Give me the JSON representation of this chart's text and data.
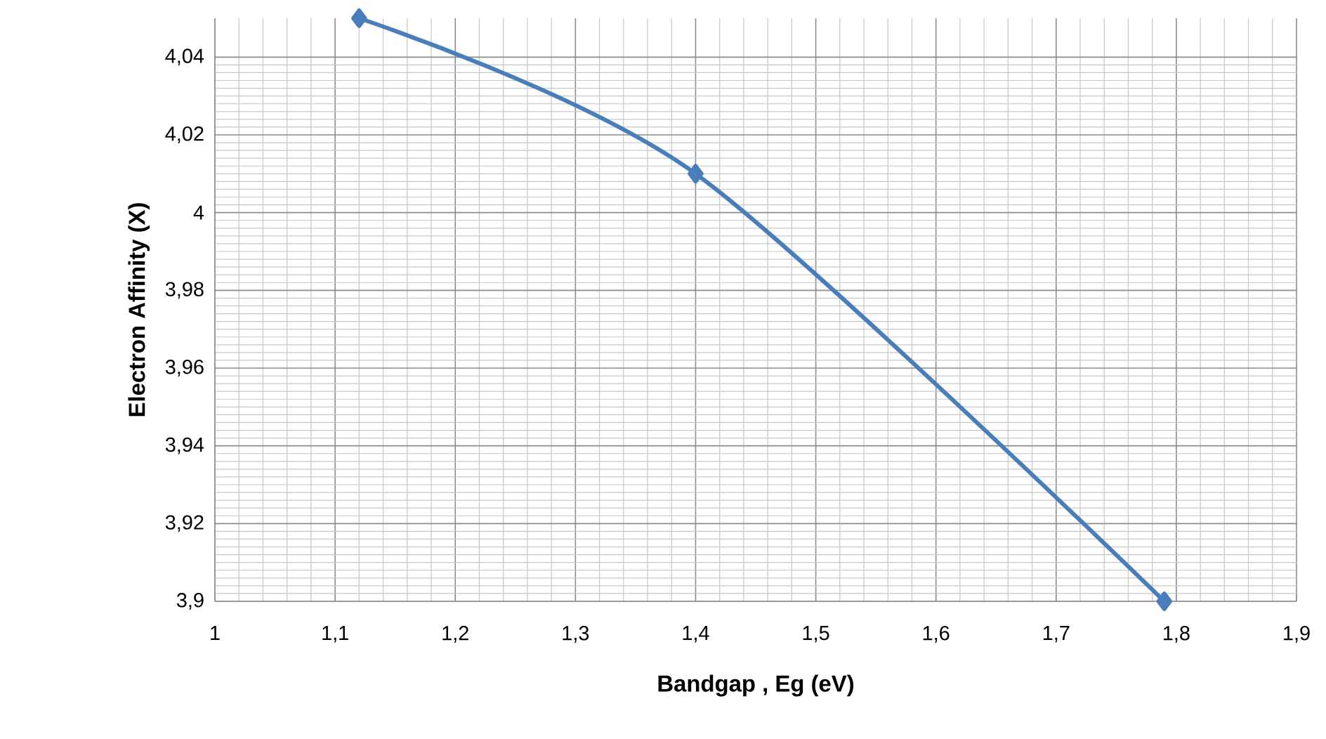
{
  "chart_data": {
    "type": "line",
    "xlabel": "Bandgap , Eg (eV)",
    "ylabel": "Electron Affinity (X)",
    "x": [
      1.12,
      1.4,
      1.79
    ],
    "series": [
      {
        "color": "#4a7ebb",
        "values": [
          4.05,
          4.01,
          3.9
        ]
      }
    ],
    "xlim": [
      1,
      1.9
    ],
    "ylim": [
      3.9,
      4.05
    ],
    "xticks": [
      {
        "value": 1,
        "label": "1"
      },
      {
        "value": 1.1,
        "label": "1,1"
      },
      {
        "value": 1.2,
        "label": "1,2"
      },
      {
        "value": 1.3,
        "label": "1,3"
      },
      {
        "value": 1.4,
        "label": "1,4"
      },
      {
        "value": 1.5,
        "label": "1,5"
      },
      {
        "value": 1.6,
        "label": "1,6"
      },
      {
        "value": 1.7,
        "label": "1,7"
      },
      {
        "value": 1.8,
        "label": "1,8"
      },
      {
        "value": 1.9,
        "label": "1,9"
      }
    ],
    "yticks": [
      {
        "value": 3.9,
        "label": "3,9"
      },
      {
        "value": 3.92,
        "label": "3,92"
      },
      {
        "value": 3.94,
        "label": "3,94"
      },
      {
        "value": 3.96,
        "label": "3,96"
      },
      {
        "value": 3.98,
        "label": "3,98"
      },
      {
        "value": 4,
        "label": "4"
      },
      {
        "value": 4.02,
        "label": "4,02"
      },
      {
        "value": 4.04,
        "label": "4,04"
      }
    ],
    "grid": true,
    "marker": "diamond",
    "line_style": "solid"
  }
}
